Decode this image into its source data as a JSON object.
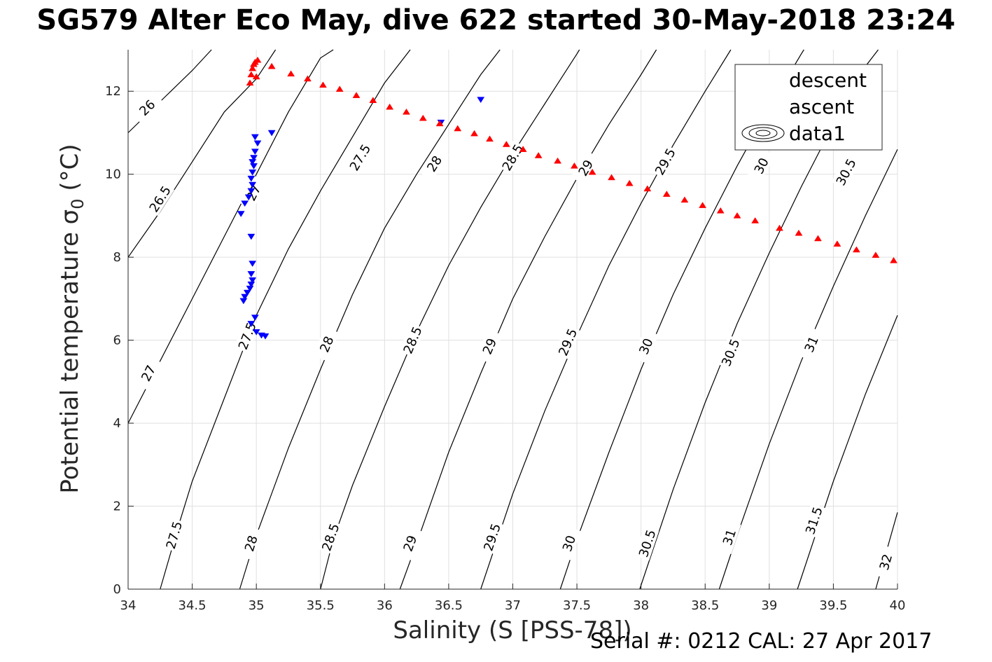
{
  "chart_data": {
    "type": "scatter",
    "title": "SG579 Alter Eco May, dive 622 started 30-May-2018 23:24",
    "xlabel": "Salinity (S [PSS-78])",
    "ylabel_main": "Potential temperature σ",
    "ylabel_sub": "0",
    "ylabel_unit": "(°C)",
    "footer": "Serial #: 0212  CAL: 27 Apr 2017",
    "xlim": [
      34,
      40
    ],
    "ylim": [
      0,
      13
    ],
    "xticks": [
      "34",
      "34.5",
      "35",
      "35.5",
      "36",
      "36.5",
      "37",
      "37.5",
      "38",
      "38.5",
      "39",
      "39.5",
      "40"
    ],
    "yticks": [
      "0",
      "2",
      "4",
      "6",
      "8",
      "10",
      "12"
    ],
    "grid": true,
    "legend": {
      "placement": "top-right",
      "entries": [
        {
          "label": "descent",
          "marker": "triangle-down",
          "color": "#0000ff"
        },
        {
          "label": "ascent",
          "marker": "triangle-up",
          "color": "#ff0000"
        },
        {
          "label": "data1",
          "marker": "contour",
          "color": "#000000"
        }
      ]
    },
    "series": [
      {
        "name": "descent",
        "color": "#0000ff",
        "marker": "triangle-down",
        "points": [
          [
            36.75,
            11.8
          ],
          [
            36.44,
            11.25
          ],
          [
            35.12,
            11.0
          ],
          [
            34.99,
            10.9
          ],
          [
            35.01,
            10.75
          ],
          [
            34.99,
            10.55
          ],
          [
            34.98,
            10.4
          ],
          [
            34.97,
            10.3
          ],
          [
            34.98,
            10.2
          ],
          [
            34.97,
            10.05
          ],
          [
            34.96,
            9.9
          ],
          [
            34.97,
            9.75
          ],
          [
            34.96,
            9.6
          ],
          [
            34.94,
            9.45
          ],
          [
            34.91,
            9.3
          ],
          [
            34.88,
            9.05
          ],
          [
            34.96,
            8.5
          ],
          [
            34.97,
            7.85
          ],
          [
            34.96,
            7.6
          ],
          [
            34.97,
            7.45
          ],
          [
            34.96,
            7.35
          ],
          [
            34.95,
            7.25
          ],
          [
            34.93,
            7.15
          ],
          [
            34.91,
            7.05
          ],
          [
            34.9,
            6.95
          ],
          [
            34.99,
            6.55
          ],
          [
            34.96,
            6.4
          ],
          [
            35.0,
            6.2
          ],
          [
            35.04,
            6.12
          ],
          [
            35.07,
            6.1
          ]
        ]
      },
      {
        "name": "ascent",
        "color": "#ff0000",
        "marker": "triangle-up",
        "points": [
          [
            34.95,
            12.2
          ],
          [
            34.96,
            12.4
          ],
          [
            34.97,
            12.55
          ],
          [
            34.98,
            12.65
          ],
          [
            34.99,
            12.7
          ],
          [
            35.01,
            12.75
          ],
          [
            35.0,
            12.35
          ],
          [
            35.12,
            12.6
          ],
          [
            35.27,
            12.42
          ],
          [
            35.4,
            12.3
          ],
          [
            35.52,
            12.15
          ],
          [
            35.65,
            12.05
          ],
          [
            35.78,
            11.9
          ],
          [
            35.91,
            11.78
          ],
          [
            36.04,
            11.62
          ],
          [
            36.17,
            11.5
          ],
          [
            36.3,
            11.35
          ],
          [
            36.43,
            11.22
          ],
          [
            36.57,
            11.1
          ],
          [
            36.7,
            10.98
          ],
          [
            36.82,
            10.85
          ],
          [
            36.95,
            10.72
          ],
          [
            37.08,
            10.6
          ],
          [
            37.2,
            10.45
          ],
          [
            37.35,
            10.32
          ],
          [
            37.48,
            10.2
          ],
          [
            37.62,
            10.05
          ],
          [
            37.77,
            9.92
          ],
          [
            37.91,
            9.78
          ],
          [
            38.05,
            9.65
          ],
          [
            38.2,
            9.52
          ],
          [
            38.34,
            9.38
          ],
          [
            38.48,
            9.25
          ],
          [
            38.62,
            9.12
          ],
          [
            38.75,
            9.0
          ],
          [
            38.89,
            8.88
          ],
          [
            39.08,
            8.7
          ],
          [
            39.23,
            8.58
          ],
          [
            39.38,
            8.45
          ],
          [
            39.53,
            8.32
          ],
          [
            39.68,
            8.18
          ],
          [
            39.83,
            8.05
          ],
          [
            39.97,
            7.92
          ]
        ]
      }
    ],
    "contours": [
      {
        "label": "26",
        "points": [
          [
            34.0,
            11.0
          ],
          [
            34.25,
            11.75
          ],
          [
            34.5,
            12.5
          ],
          [
            34.65,
            13.0
          ]
        ],
        "label_at": [
          [
            34.15,
            11.6
          ]
        ]
      },
      {
        "label": "26.5",
        "points": [
          [
            34.0,
            8.0
          ],
          [
            34.25,
            9.1
          ],
          [
            34.5,
            10.3
          ],
          [
            34.75,
            11.5
          ],
          [
            35.0,
            12.3
          ],
          [
            35.15,
            13.0
          ]
        ],
        "label_at": [
          [
            34.25,
            9.4
          ]
        ]
      },
      {
        "label": "27",
        "points": [
          [
            34.0,
            4.0
          ],
          [
            34.25,
            5.5
          ],
          [
            34.5,
            7.0
          ],
          [
            34.75,
            8.5
          ],
          [
            35.0,
            10.0
          ],
          [
            35.25,
            11.5
          ],
          [
            35.5,
            12.8
          ],
          [
            35.6,
            13.0
          ]
        ],
        "label_at": [
          [
            34.16,
            5.2
          ],
          [
            34.98,
            9.55
          ]
        ]
      },
      {
        "label": "27.5",
        "points": [
          [
            34.25,
            0.0
          ],
          [
            34.4,
            1.6
          ],
          [
            34.5,
            2.6
          ],
          [
            34.75,
            4.6
          ],
          [
            35.0,
            6.6
          ],
          [
            35.25,
            8.2
          ],
          [
            35.5,
            9.6
          ],
          [
            35.75,
            10.9
          ],
          [
            36.0,
            12.2
          ],
          [
            36.2,
            13.0
          ]
        ],
        "label_at": [
          [
            34.36,
            1.3
          ],
          [
            34.93,
            6.1
          ],
          [
            35.81,
            10.4
          ]
        ]
      },
      {
        "label": "28",
        "points": [
          [
            34.87,
            0.0
          ],
          [
            35.0,
            1.3
          ],
          [
            35.25,
            3.4
          ],
          [
            35.5,
            5.3
          ],
          [
            35.75,
            7.1
          ],
          [
            36.0,
            8.7
          ],
          [
            36.25,
            10.0
          ],
          [
            36.5,
            11.2
          ],
          [
            36.75,
            12.4
          ],
          [
            36.9,
            13.0
          ]
        ],
        "label_at": [
          [
            34.96,
            1.1
          ],
          [
            35.55,
            5.9
          ],
          [
            36.39,
            10.25
          ]
        ]
      },
      {
        "label": "28.5",
        "points": [
          [
            35.5,
            0.0
          ],
          [
            35.6,
            1.2
          ],
          [
            35.75,
            2.5
          ],
          [
            36.0,
            4.4
          ],
          [
            36.25,
            6.2
          ],
          [
            36.5,
            7.8
          ],
          [
            36.75,
            9.2
          ],
          [
            37.0,
            10.5
          ],
          [
            37.25,
            11.7
          ],
          [
            37.5,
            12.9
          ],
          [
            37.52,
            13.0
          ]
        ],
        "label_at": [
          [
            35.58,
            1.25
          ],
          [
            36.22,
            6.0
          ],
          [
            37.0,
            10.4
          ]
        ]
      },
      {
        "label": "29",
        "points": [
          [
            36.12,
            0.0
          ],
          [
            36.25,
            1.1
          ],
          [
            36.5,
            3.3
          ],
          [
            36.75,
            5.2
          ],
          [
            37.0,
            7.0
          ],
          [
            37.25,
            8.5
          ],
          [
            37.5,
            9.9
          ],
          [
            37.75,
            11.2
          ],
          [
            38.0,
            12.4
          ],
          [
            38.12,
            13.0
          ]
        ],
        "label_at": [
          [
            36.2,
            1.1
          ],
          [
            36.82,
            5.85
          ],
          [
            37.57,
            10.15
          ]
        ]
      },
      {
        "label": "29.5",
        "points": [
          [
            36.75,
            0.0
          ],
          [
            37.0,
            2.3
          ],
          [
            37.25,
            4.3
          ],
          [
            37.5,
            6.1
          ],
          [
            37.75,
            7.8
          ],
          [
            38.0,
            9.3
          ],
          [
            38.25,
            10.7
          ],
          [
            38.5,
            12.0
          ],
          [
            38.7,
            13.0
          ]
        ],
        "label_at": [
          [
            36.84,
            1.25
          ],
          [
            37.43,
            5.95
          ],
          [
            38.19,
            10.3
          ]
        ]
      },
      {
        "label": "30",
        "points": [
          [
            37.37,
            0.0
          ],
          [
            37.5,
            1.2
          ],
          [
            37.75,
            3.3
          ],
          [
            38.0,
            5.3
          ],
          [
            38.25,
            7.1
          ],
          [
            38.5,
            8.7
          ],
          [
            38.75,
            10.2
          ],
          [
            39.0,
            11.6
          ],
          [
            39.25,
            12.9
          ],
          [
            39.27,
            13.0
          ]
        ],
        "label_at": [
          [
            37.44,
            1.1
          ],
          [
            38.04,
            5.85
          ],
          [
            38.94,
            10.2
          ]
        ]
      },
      {
        "label": "30.5",
        "points": [
          [
            37.99,
            0.0
          ],
          [
            38.25,
            2.4
          ],
          [
            38.5,
            4.5
          ],
          [
            38.75,
            6.4
          ],
          [
            39.0,
            8.1
          ],
          [
            39.25,
            9.7
          ],
          [
            39.5,
            11.2
          ],
          [
            39.75,
            12.6
          ],
          [
            39.85,
            13.0
          ]
        ],
        "label_at": [
          [
            38.05,
            1.1
          ],
          [
            38.7,
            5.7
          ],
          [
            39.6,
            10.05
          ]
        ]
      },
      {
        "label": "31",
        "points": [
          [
            38.61,
            0.0
          ],
          [
            38.75,
            1.3
          ],
          [
            39.0,
            3.5
          ],
          [
            39.25,
            5.5
          ],
          [
            39.5,
            7.3
          ],
          [
            39.75,
            9.0
          ],
          [
            40.0,
            10.6
          ]
        ],
        "label_at": [
          [
            38.69,
            1.25
          ],
          [
            39.33,
            5.9
          ]
        ]
      },
      {
        "label": "31.5",
        "points": [
          [
            39.22,
            0.0
          ],
          [
            39.5,
            2.6
          ],
          [
            39.75,
            4.7
          ],
          [
            40.0,
            6.6
          ]
        ],
        "label_at": [
          [
            39.35,
            1.65
          ]
        ]
      },
      {
        "label": "32",
        "points": [
          [
            39.83,
            0.0
          ],
          [
            40.0,
            1.85
          ]
        ],
        "label_at": [
          [
            39.91,
            0.65
          ]
        ]
      }
    ]
  }
}
